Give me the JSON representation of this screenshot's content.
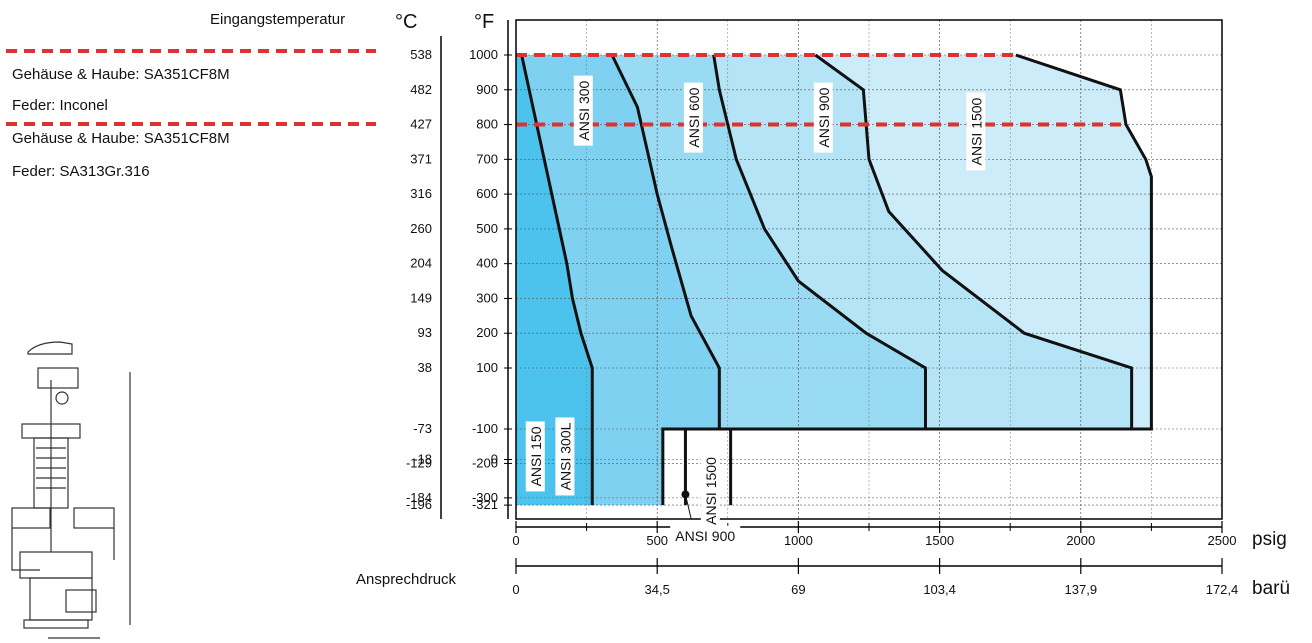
{
  "header": {
    "inlet_temperature": "Eingangstemperatur",
    "celsius_unit": "°C",
    "fahrenheit_unit": "°F"
  },
  "legend": {
    "group1_body": "Gehäuse & Haube: SA351CF8M",
    "group1_spring": "Feder: Inconel",
    "group2_body": "Gehäuse & Haube: SA351CF8M",
    "group2_spring": "Feder: SA313Gr.316",
    "line_color": "#e03030"
  },
  "chart_data": {
    "type": "area",
    "x_axis_psig": {
      "unit": "psig",
      "range": [
        0,
        2500
      ],
      "ticks": [
        0,
        500,
        1000,
        1500,
        2000,
        2500
      ],
      "tick_labels": [
        "0",
        "500",
        "1000",
        "1500",
        "2000",
        "2500"
      ]
    },
    "x_axis_barg": {
      "unit": "barü",
      "label": "Ansprechdruck",
      "tick_labels": [
        "0",
        "34,5",
        "69",
        "103,4",
        "137,9",
        "172,4"
      ],
      "tick_psig": [
        0,
        500,
        1000,
        1500,
        2000,
        2500
      ]
    },
    "y_axis_f": {
      "ticks": [
        1000,
        900,
        800,
        700,
        600,
        500,
        400,
        300,
        200,
        100,
        0,
        -100,
        -200,
        -300,
        -321
      ],
      "tick_labels": [
        "1000",
        "900",
        "800",
        "700",
        "600",
        "500",
        "400",
        "300",
        "200",
        "100",
        "0",
        "-100",
        "-200",
        "-300",
        "-321"
      ]
    },
    "y_axis_c": {
      "tick_labels": [
        "538",
        "482",
        "427",
        "371",
        "316",
        "260",
        "204",
        "149",
        "93",
        "38",
        "-18",
        "-73",
        "-129",
        "-184",
        "-196"
      ]
    },
    "limit_lines_f": [
      1000,
      800
    ],
    "regions": [
      {
        "name": "ANSI 150 / ANSI 300L",
        "fill": "#4cc3ec",
        "boundary": [
          [
            0,
            -321
          ],
          [
            0,
            1000
          ],
          [
            20,
            1000
          ],
          [
            60,
            850
          ],
          [
            100,
            700
          ],
          [
            140,
            550
          ],
          [
            180,
            400
          ],
          [
            200,
            300
          ],
          [
            230,
            200
          ],
          [
            270,
            100
          ],
          [
            270,
            -321
          ]
        ]
      },
      {
        "name": "ANSI 300",
        "fill": "#7fd1f1",
        "boundary": [
          [
            20,
            1000
          ],
          [
            60,
            850
          ],
          [
            100,
            700
          ],
          [
            140,
            550
          ],
          [
            180,
            400
          ],
          [
            200,
            300
          ],
          [
            230,
            200
          ],
          [
            270,
            100
          ],
          [
            270,
            -321
          ],
          [
            520,
            -321
          ],
          [
            520,
            -100
          ],
          [
            720,
            -100
          ],
          [
            720,
            100
          ],
          [
            620,
            250
          ],
          [
            550,
            450
          ],
          [
            500,
            600
          ],
          [
            430,
            850
          ],
          [
            340,
            1000
          ]
        ]
      },
      {
        "name": "ANSI 600",
        "fill": "#9adbf4",
        "boundary": [
          [
            340,
            1000
          ],
          [
            430,
            850
          ],
          [
            500,
            600
          ],
          [
            550,
            450
          ],
          [
            620,
            250
          ],
          [
            720,
            100
          ],
          [
            720,
            -100
          ],
          [
            1450,
            -100
          ],
          [
            1450,
            100
          ],
          [
            1240,
            200
          ],
          [
            1000,
            350
          ],
          [
            880,
            500
          ],
          [
            780,
            700
          ],
          [
            720,
            900
          ],
          [
            700,
            1000
          ]
        ]
      },
      {
        "name": "ANSI 900",
        "fill": "#b5e4f7",
        "boundary": [
          [
            700,
            1000
          ],
          [
            720,
            900
          ],
          [
            780,
            700
          ],
          [
            880,
            500
          ],
          [
            1000,
            350
          ],
          [
            1240,
            200
          ],
          [
            1450,
            100
          ],
          [
            1450,
            -100
          ],
          [
            2180,
            -100
          ],
          [
            2180,
            100
          ],
          [
            1800,
            200
          ],
          [
            1510,
            380
          ],
          [
            1320,
            550
          ],
          [
            1250,
            700
          ],
          [
            1230,
            900
          ],
          [
            1060,
            1000
          ]
        ]
      },
      {
        "name": "ANSI 1500",
        "fill": "#ccecfa",
        "boundary": [
          [
            1060,
            1000
          ],
          [
            1230,
            900
          ],
          [
            1250,
            700
          ],
          [
            1320,
            550
          ],
          [
            1510,
            380
          ],
          [
            1800,
            200
          ],
          [
            2180,
            100
          ],
          [
            2180,
            -100
          ],
          [
            2250,
            -100
          ],
          [
            2250,
            650
          ],
          [
            2230,
            700
          ],
          [
            2160,
            800
          ],
          [
            2140,
            900
          ],
          [
            1770,
            1000
          ]
        ]
      }
    ],
    "curve_labels": [
      {
        "text": "ANSI 150",
        "psig": 70,
        "tempF": -10
      },
      {
        "text": "ANSI 300L",
        "psig": 175,
        "tempF": -10
      },
      {
        "text": "ANSI 300",
        "psig": 240,
        "tempF": 840
      },
      {
        "text": "ANSI 600",
        "psig": 630,
        "tempF": 820
      },
      {
        "text": "ANSI 900",
        "psig": 1090,
        "tempF": 820
      },
      {
        "text": "ANSI 1500",
        "psig": 1630,
        "tempF": 780
      },
      {
        "text": "ANSI 1500",
        "psig": 690,
        "tempF": -280
      },
      {
        "text": "ANSI 900",
        "psig": 670,
        "tempF": -410
      }
    ]
  }
}
